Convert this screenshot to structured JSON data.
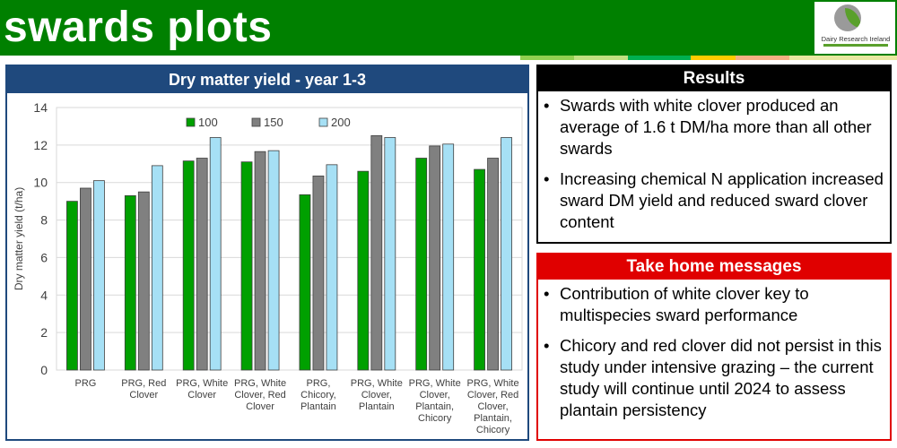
{
  "slide": {
    "title": "swards plots",
    "title_bar_color": "#008000",
    "stripe_colors": [
      "#92d050",
      "#c0e080",
      "#00b050",
      "#ffcc00",
      "#f4b183",
      "#e8e8a0"
    ]
  },
  "logo": {
    "text": "Dairy Research Ireland",
    "icon": "dairy-research-ireland-logo-icon"
  },
  "chart_panel": {
    "heading": "Dry matter yield - year 1-3",
    "header_color": "#1f497d"
  },
  "chart_data": {
    "type": "bar",
    "title": "Dry matter yield - year 1-3",
    "xlabel": "",
    "ylabel": "Dry matter yield (t/ha)",
    "ylim": [
      0,
      14
    ],
    "yticks": [
      0,
      2,
      4,
      6,
      8,
      10,
      12,
      14
    ],
    "grid": true,
    "legend_position": "top",
    "categories": [
      [
        "PRG"
      ],
      [
        "PRG, Red",
        "Clover"
      ],
      [
        "PRG, White",
        "Clover"
      ],
      [
        "PRG, White",
        "Clover, Red",
        "Clover"
      ],
      [
        "PRG,",
        "Chicory,",
        "Plantain"
      ],
      [
        "PRG, White",
        "Clover,",
        "Plantain"
      ],
      [
        "PRG, White",
        "Clover,",
        "Plantain,",
        "Chicory"
      ],
      [
        "PRG, White",
        "Clover, Red",
        "Clover,",
        "Plantain,",
        "Chicory"
      ]
    ],
    "series": [
      {
        "name": "100",
        "color": "#00a000",
        "values": [
          9.0,
          9.3,
          11.15,
          11.1,
          9.35,
          10.6,
          11.3,
          10.7
        ]
      },
      {
        "name": "150",
        "color": "#808080",
        "values": [
          9.7,
          9.5,
          11.3,
          11.65,
          10.35,
          12.5,
          11.95,
          11.3
        ]
      },
      {
        "name": "200",
        "color": "#a6e0f5",
        "values": [
          10.1,
          10.9,
          12.4,
          11.7,
          10.95,
          12.4,
          12.05,
          12.4
        ]
      }
    ]
  },
  "results": {
    "heading": "Results",
    "bullets": [
      "Swards with white clover produced an average of 1.6 t DM/ha more than all other swards",
      "Increasing chemical N application increased sward DM yield and reduced sward clover content"
    ]
  },
  "take_home": {
    "heading": "Take home messages",
    "bullets": [
      "Contribution of white clover key to multispecies sward performance",
      "Chicory and red clover did not persist in this study under intensive grazing – the current study will continue until 2024 to assess plantain persistency"
    ]
  },
  "bullet_char": "•"
}
